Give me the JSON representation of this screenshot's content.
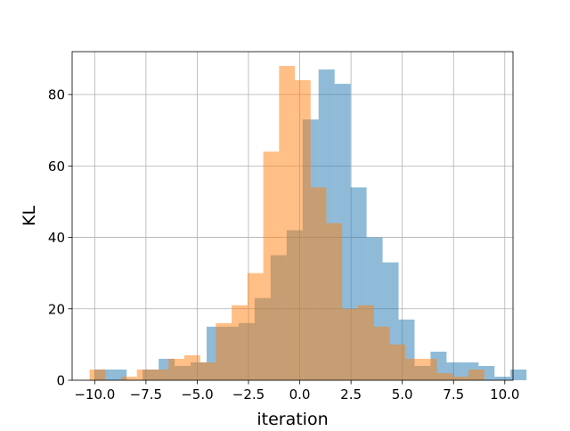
{
  "chart_data": {
    "type": "bar",
    "title": "",
    "xlabel": "iteration",
    "ylabel": "KL",
    "xlim": [
      -11.1,
      10.4
    ],
    "ylim": [
      0,
      92
    ],
    "x_ticks": [
      -10.0,
      -7.5,
      -5.0,
      -2.5,
      0.0,
      2.5,
      5.0,
      7.5,
      10.0
    ],
    "x_tick_labels": [
      "−10.0",
      "−7.5",
      "−5.0",
      "−2.5",
      "0.0",
      "2.5",
      "5.0",
      "7.5",
      "10.0"
    ],
    "y_ticks": [
      0,
      20,
      40,
      60,
      80
    ],
    "y_tick_labels": [
      "0",
      "20",
      "40",
      "60",
      "80"
    ],
    "grid": true,
    "legend": "none",
    "series": [
      {
        "color": "#1f77b4",
        "opacity": 0.5,
        "bin_start": -10.0,
        "bin_width": 0.78,
        "values": [
          3,
          3,
          0,
          3,
          6,
          4,
          5,
          15,
          15,
          16,
          23,
          35,
          42,
          73,
          87,
          83,
          54,
          40,
          33,
          17,
          4,
          8,
          5,
          5,
          4,
          1,
          3
        ]
      },
      {
        "color": "#ff7f0e",
        "opacity": 0.5,
        "bin_start": -10.25,
        "bin_width": 0.77,
        "values": [
          3,
          0,
          1,
          3,
          3,
          6,
          7,
          5,
          16,
          21,
          30,
          64,
          88,
          84,
          54,
          44,
          20,
          21,
          15,
          10,
          6,
          6,
          2,
          1,
          3,
          0
        ]
      }
    ]
  }
}
